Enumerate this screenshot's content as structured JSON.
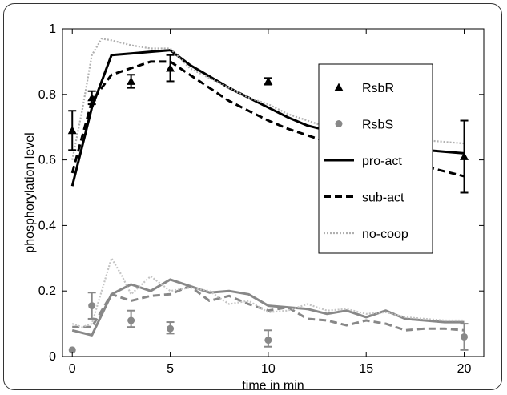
{
  "chart_data": {
    "type": "line",
    "xlabel": "time in min",
    "ylabel": "phosphorylation level",
    "xlim": [
      -0.5,
      21
    ],
    "ylim": [
      0,
      1
    ],
    "x_ticks": [
      0,
      5,
      10,
      15,
      20
    ],
    "y_ticks": [
      0,
      0.2,
      0.4,
      0.6,
      0.8,
      1
    ],
    "legend_position": "top-right",
    "grid": false,
    "colors": {
      "rsbr": "#000000",
      "rsbs": "#888888",
      "nocoop_r": "#b0b0b0",
      "nocoop_s": "#c4c4c4"
    },
    "legend": [
      {
        "label": "RsbR",
        "kind": "marker-triangle",
        "color": "#000000"
      },
      {
        "label": "RsbS",
        "kind": "marker-circle",
        "color": "#888888"
      },
      {
        "label": "pro-act",
        "kind": "solid",
        "color": "#000000"
      },
      {
        "label": "sub-act",
        "kind": "dashed",
        "color": "#000000"
      },
      {
        "label": "no-coop",
        "kind": "dotted",
        "color": "#b0b0b0"
      }
    ],
    "measurements": [
      {
        "name": "RsbR",
        "marker": "triangle",
        "color": "#000000",
        "points": [
          {
            "x": 0,
            "y": 0.69,
            "lo": 0.63,
            "hi": 0.75
          },
          {
            "x": 1,
            "y": 0.79,
            "lo": 0.77,
            "hi": 0.81
          },
          {
            "x": 3,
            "y": 0.84,
            "lo": 0.82,
            "hi": 0.86
          },
          {
            "x": 5,
            "y": 0.88,
            "lo": 0.84,
            "hi": 0.92
          },
          {
            "x": 10,
            "y": 0.84,
            "lo": 0.83,
            "hi": 0.85
          },
          {
            "x": 20,
            "y": 0.61,
            "lo": 0.5,
            "hi": 0.72
          }
        ]
      },
      {
        "name": "RsbS",
        "marker": "circle",
        "color": "#888888",
        "points": [
          {
            "x": 0,
            "y": 0.02,
            "lo": 0.02,
            "hi": 0.02
          },
          {
            "x": 1,
            "y": 0.155,
            "lo": 0.115,
            "hi": 0.195
          },
          {
            "x": 3,
            "y": 0.11,
            "lo": 0.09,
            "hi": 0.14
          },
          {
            "x": 5,
            "y": 0.085,
            "lo": 0.07,
            "hi": 0.105
          },
          {
            "x": 10,
            "y": 0.05,
            "lo": 0.03,
            "hi": 0.08
          },
          {
            "x": 20,
            "y": 0.06,
            "lo": 0.02,
            "hi": 0.1
          }
        ]
      }
    ],
    "series": [
      {
        "name": "pro-act",
        "group": "RsbR",
        "style": "solid",
        "color": "#000000",
        "x": [
          0,
          1,
          2,
          3,
          4,
          5,
          6,
          7,
          8,
          9,
          10,
          11,
          12,
          13,
          14,
          15,
          16,
          17,
          18,
          19,
          20
        ],
        "y": [
          0.52,
          0.76,
          0.92,
          0.925,
          0.93,
          0.935,
          0.89,
          0.855,
          0.82,
          0.79,
          0.76,
          0.73,
          0.705,
          0.69,
          0.675,
          0.66,
          0.645,
          0.635,
          0.63,
          0.625,
          0.62
        ]
      },
      {
        "name": "sub-act",
        "group": "RsbR",
        "style": "dashed",
        "color": "#000000",
        "x": [
          0,
          1,
          2,
          3,
          4,
          5,
          6,
          7,
          8,
          9,
          10,
          11,
          12,
          13,
          14,
          15,
          16,
          17,
          18,
          19,
          20
        ],
        "y": [
          0.56,
          0.78,
          0.86,
          0.88,
          0.9,
          0.9,
          0.86,
          0.82,
          0.78,
          0.75,
          0.72,
          0.695,
          0.675,
          0.655,
          0.64,
          0.625,
          0.61,
          0.595,
          0.58,
          0.565,
          0.55
        ]
      },
      {
        "name": "no-coop",
        "group": "RsbR",
        "style": "dotted",
        "color": "#b0b0b0",
        "x": [
          0,
          0.5,
          1,
          1.5,
          2,
          3,
          4,
          5,
          6,
          7,
          8,
          9,
          10,
          11,
          12,
          13,
          14,
          15,
          16,
          17,
          18,
          19,
          20
        ],
        "y": [
          0.6,
          0.75,
          0.92,
          0.97,
          0.965,
          0.95,
          0.94,
          0.94,
          0.88,
          0.85,
          0.82,
          0.79,
          0.77,
          0.74,
          0.72,
          0.7,
          0.69,
          0.68,
          0.67,
          0.665,
          0.66,
          0.655,
          0.65
        ]
      },
      {
        "name": "pro-act",
        "group": "RsbS",
        "style": "solid",
        "color": "#888888",
        "x": [
          0,
          1,
          2,
          3,
          4,
          5,
          6,
          7,
          8,
          9,
          10,
          11,
          12,
          13,
          14,
          15,
          16,
          17,
          18,
          19,
          20
        ],
        "y": [
          0.08,
          0.065,
          0.19,
          0.22,
          0.2,
          0.235,
          0.215,
          0.195,
          0.2,
          0.19,
          0.155,
          0.15,
          0.145,
          0.13,
          0.14,
          0.12,
          0.14,
          0.115,
          0.11,
          0.105,
          0.105
        ]
      },
      {
        "name": "sub-act",
        "group": "RsbS",
        "style": "dashed",
        "color": "#888888",
        "x": [
          0,
          1,
          2,
          3,
          4,
          5,
          6,
          7,
          8,
          9,
          10,
          11,
          12,
          13,
          14,
          15,
          16,
          17,
          18,
          19,
          20
        ],
        "y": [
          0.09,
          0.09,
          0.19,
          0.17,
          0.185,
          0.19,
          0.215,
          0.17,
          0.185,
          0.16,
          0.14,
          0.15,
          0.115,
          0.11,
          0.095,
          0.11,
          0.1,
          0.08,
          0.085,
          0.085,
          0.08
        ]
      },
      {
        "name": "no-coop",
        "group": "RsbS",
        "style": "dotted",
        "color": "#c4c4c4",
        "x": [
          0,
          0.5,
          1,
          1.5,
          2,
          2.5,
          3,
          4,
          5,
          6,
          7,
          8,
          9,
          10,
          11,
          12,
          13,
          14,
          15,
          16,
          17,
          18,
          19,
          20
        ],
        "y": [
          0.1,
          0.09,
          0.1,
          0.2,
          0.3,
          0.25,
          0.19,
          0.245,
          0.2,
          0.21,
          0.2,
          0.16,
          0.17,
          0.135,
          0.14,
          0.16,
          0.14,
          0.145,
          0.13,
          0.135,
          0.12,
          0.115,
          0.11,
          0.11
        ]
      }
    ]
  }
}
